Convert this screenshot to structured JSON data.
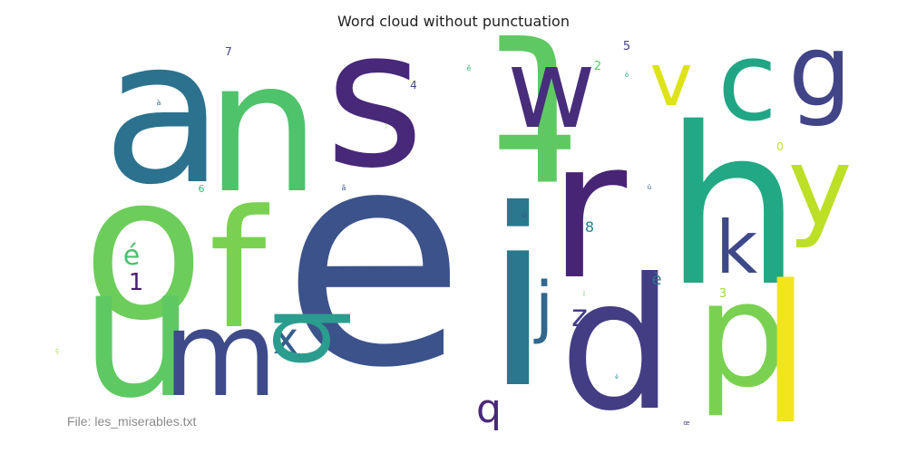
{
  "chart_data": {
    "type": "wordcloud",
    "title": "Word cloud without punctuation",
    "words": [
      {
        "text": "a",
        "size": 100,
        "color": "#2c728e"
      },
      {
        "text": "n",
        "size": 88,
        "color": "#4ec36b"
      },
      {
        "text": "s",
        "size": 85,
        "color": "#482878"
      },
      {
        "text": "t",
        "size": 78,
        "color": "#5ec962"
      },
      {
        "text": "w",
        "size": 52,
        "color": "#472d7b"
      },
      {
        "text": "v",
        "size": 40,
        "color": "#dde318"
      },
      {
        "text": "c",
        "size": 62,
        "color": "#21a685"
      },
      {
        "text": "g",
        "size": 58,
        "color": "#414487"
      },
      {
        "text": "h",
        "size": 96,
        "color": "#22a884"
      },
      {
        "text": "y",
        "size": 52,
        "color": "#bddf26"
      },
      {
        "text": "o",
        "size": 92,
        "color": "#6ccd5a"
      },
      {
        "text": "f",
        "size": 58,
        "color": "#7ad151"
      },
      {
        "text": "e",
        "size": 100,
        "color": "#3b528b"
      },
      {
        "text": "i",
        "size": 90,
        "color": "#2a788e"
      },
      {
        "text": "r",
        "size": 80,
        "color": "#482475"
      },
      {
        "text": "k",
        "size": 34,
        "color": "#3e4989"
      },
      {
        "text": "u",
        "size": 62,
        "color": "#5ec962"
      },
      {
        "text": "m",
        "size": 48,
        "color": "#3e4a89"
      },
      {
        "text": "x",
        "size": 26,
        "color": "#35608d"
      },
      {
        "text": "b",
        "size": 44,
        "color": "#2a9d8e"
      },
      {
        "text": "j",
        "size": 30,
        "color": "#31688e"
      },
      {
        "text": "z",
        "size": 18,
        "color": "#433e85"
      },
      {
        "text": "d",
        "size": 76,
        "color": "#433d84"
      },
      {
        "text": "p",
        "size": 56,
        "color": "#7ad151"
      },
      {
        "text": "l",
        "size": 84,
        "color": "#f1e51d"
      },
      {
        "text": "q",
        "size": 28,
        "color": "#482878"
      },
      {
        "text": "é",
        "size": 20,
        "color": "#4ac16d"
      },
      {
        "text": "1",
        "size": 16,
        "color": "#481f70"
      },
      {
        "text": "è",
        "size": 12,
        "color": "#2d708e"
      },
      {
        "text": "8",
        "size": 10,
        "color": "#26828e"
      },
      {
        "text": "3",
        "size": 9,
        "color": "#a0da39"
      },
      {
        "text": "0",
        "size": 8,
        "color": "#c2df23"
      },
      {
        "text": "2",
        "size": 8,
        "color": "#5ec962"
      },
      {
        "text": "5",
        "size": 8,
        "color": "#433e85"
      },
      {
        "text": "4",
        "size": 7,
        "color": "#3e4a89"
      },
      {
        "text": "7",
        "size": 7,
        "color": "#404387"
      },
      {
        "text": "6",
        "size": 7,
        "color": "#38b977"
      },
      {
        "text": "à",
        "size": 5,
        "color": "#2c728e"
      },
      {
        "text": "â",
        "size": 5,
        "color": "#39568c"
      },
      {
        "text": "ê",
        "size": 5,
        "color": "#3fbc73"
      },
      {
        "text": "ç",
        "size": 4,
        "color": "#aadc32"
      },
      {
        "text": "ô",
        "size": 4,
        "color": "#20a486"
      },
      {
        "text": "ü",
        "size": 4,
        "color": "#3f4788"
      },
      {
        "text": "û",
        "size": 4,
        "color": "#34608d"
      },
      {
        "text": "î",
        "size": 4,
        "color": "#5ec962"
      },
      {
        "text": "ï",
        "size": 4,
        "color": "#8fd744"
      },
      {
        "text": "œ",
        "size": 4,
        "color": "#443a83"
      },
      {
        "text": "ë",
        "size": 3,
        "color": "#277f8e"
      }
    ]
  },
  "footer": {
    "label": "File: les_miserables.txt"
  }
}
